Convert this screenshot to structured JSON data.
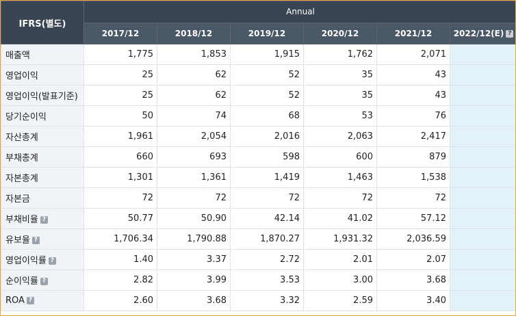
{
  "table": {
    "corner_header": "IFRS(별도)",
    "period_header": "Annual",
    "columns": [
      "2017/12",
      "2018/12",
      "2019/12",
      "2020/12",
      "2021/12",
      "2022/12(E)"
    ],
    "column_help_icon": "question-icon",
    "rows": [
      {
        "label": "매출액",
        "help": false,
        "values": [
          "1,775",
          "1,853",
          "1,915",
          "1,762",
          "2,071",
          ""
        ]
      },
      {
        "label": "영업이익",
        "help": false,
        "values": [
          "25",
          "62",
          "52",
          "35",
          "43",
          ""
        ]
      },
      {
        "label": "영업이익(발표기준)",
        "help": false,
        "values": [
          "25",
          "62",
          "52",
          "35",
          "43",
          ""
        ]
      },
      {
        "label": "당기순이익",
        "help": false,
        "values": [
          "50",
          "74",
          "68",
          "53",
          "76",
          ""
        ]
      },
      {
        "label": "자산총계",
        "help": false,
        "values": [
          "1,961",
          "2,054",
          "2,016",
          "2,063",
          "2,417",
          ""
        ]
      },
      {
        "label": "부채총계",
        "help": false,
        "values": [
          "660",
          "693",
          "598",
          "600",
          "879",
          ""
        ]
      },
      {
        "label": "자본총계",
        "help": false,
        "values": [
          "1,301",
          "1,361",
          "1,419",
          "1,463",
          "1,538",
          ""
        ]
      },
      {
        "label": "자본금",
        "help": false,
        "values": [
          "72",
          "72",
          "72",
          "72",
          "72",
          ""
        ]
      },
      {
        "label": "부채비율",
        "help": true,
        "values": [
          "50.77",
          "50.90",
          "42.14",
          "41.02",
          "57.12",
          ""
        ]
      },
      {
        "label": "유보율",
        "help": true,
        "values": [
          "1,706.34",
          "1,790.88",
          "1,870.27",
          "1,931.32",
          "2,036.59",
          ""
        ]
      },
      {
        "label": "영업이익률",
        "help": true,
        "values": [
          "1.40",
          "3.37",
          "2.72",
          "2.01",
          "2.07",
          ""
        ]
      },
      {
        "label": "순이익률",
        "help": true,
        "values": [
          "2.82",
          "3.99",
          "3.53",
          "3.00",
          "3.68",
          ""
        ]
      },
      {
        "label": "ROA",
        "help": true,
        "values": [
          "2.60",
          "3.68",
          "3.32",
          "2.59",
          "3.40",
          ""
        ]
      }
    ]
  },
  "colors": {
    "header_bg": "#3a4553",
    "estimate_column_bg": "#e3f1f8",
    "label_bg": "#f0f3f7",
    "frame_border": "#e8a33a"
  }
}
